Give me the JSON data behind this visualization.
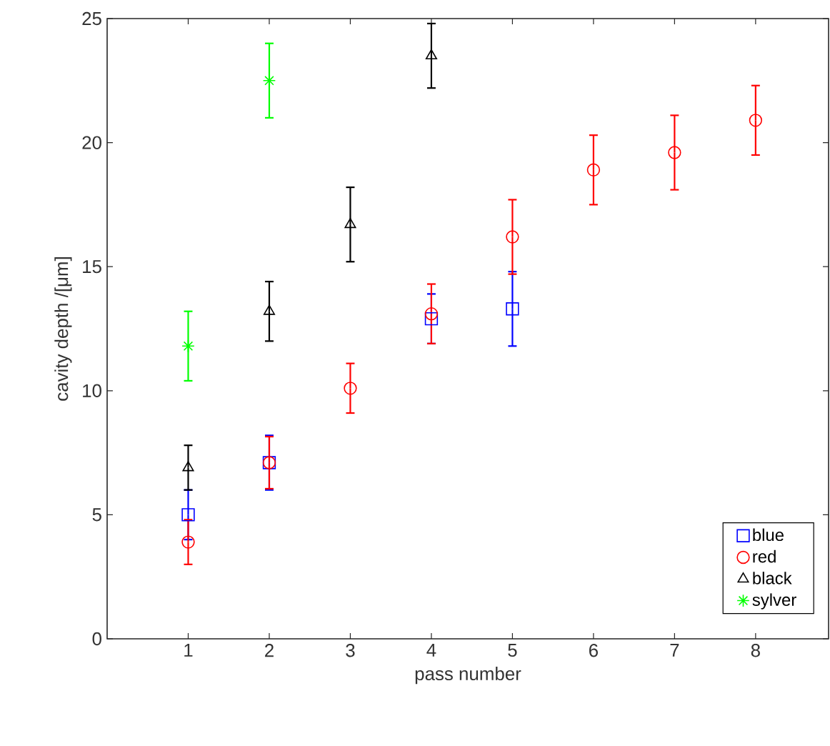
{
  "chart_data": {
    "type": "scatter",
    "xlabel": "pass number",
    "ylabel": "cavity depth /[μm]",
    "xlim": [
      0,
      8.9
    ],
    "xticks": [
      1,
      2,
      3,
      4,
      5,
      6,
      7,
      8
    ],
    "ylim": [
      0,
      25
    ],
    "yticks": [
      0,
      5,
      10,
      15,
      20,
      25
    ],
    "grid": false,
    "legend": "bottom right",
    "series": [
      {
        "name": "blue",
        "color": "#0000ff",
        "marker": "square",
        "x": [
          1,
          2,
          4,
          5
        ],
        "values": [
          5.0,
          7.1,
          12.9,
          13.3
        ],
        "errors": [
          1.0,
          1.1,
          1.0,
          1.5
        ]
      },
      {
        "name": "red",
        "color": "#ff0000",
        "marker": "circle",
        "x": [
          1,
          2,
          3,
          4,
          5,
          6,
          7,
          8
        ],
        "values": [
          3.9,
          7.1,
          10.1,
          13.1,
          16.2,
          18.9,
          19.6,
          20.9
        ],
        "errors": [
          0.9,
          1.05,
          1.0,
          1.2,
          1.5,
          1.4,
          1.5,
          1.4
        ]
      },
      {
        "name": "black",
        "color": "#000000",
        "marker": "triangle",
        "x": [
          1,
          2,
          3,
          4
        ],
        "values": [
          6.9,
          13.2,
          16.7,
          23.5
        ],
        "errors": [
          0.9,
          1.2,
          1.5,
          1.3
        ]
      },
      {
        "name": "sylver",
        "color": "#00ff00",
        "marker": "cross",
        "x": [
          1,
          2
        ],
        "values": [
          11.8,
          22.5
        ],
        "errors": [
          1.4,
          1.5
        ]
      }
    ]
  }
}
